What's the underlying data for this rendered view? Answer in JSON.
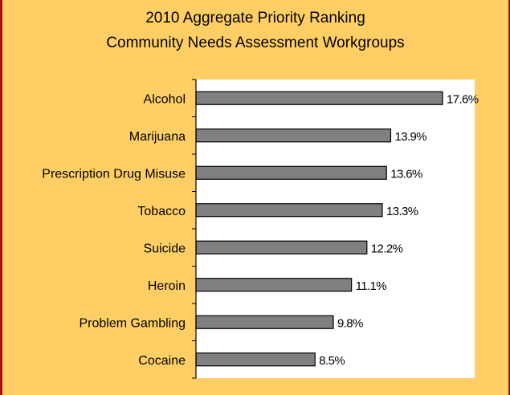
{
  "chart_data": {
    "type": "bar",
    "orientation": "horizontal",
    "title": "2010 Aggregate Priority Ranking",
    "subtitle": "Community Needs Assessment Workgroups",
    "categories": [
      "Alcohol",
      "Marijuana",
      "Prescription Drug Misuse",
      "Tobacco",
      "Suicide",
      "Heroin",
      "Problem Gambling",
      "Cocaine"
    ],
    "values": [
      17.6,
      13.9,
      13.6,
      13.3,
      12.2,
      11.1,
      9.8,
      8.5
    ],
    "value_labels": [
      "17.6%",
      "13.9%",
      "13.6%",
      "13.3%",
      "12.2%",
      "11.1%",
      "9.8%",
      "8.5%"
    ],
    "xlim": [
      0,
      20
    ],
    "unit": "%",
    "grid": false,
    "legend": "none",
    "colors": {
      "bar_fill": "#808080",
      "bar_stroke": "#000000",
      "plot_background": "#ffffff",
      "page_background": "#ffcf66",
      "border": "#a8121e"
    }
  }
}
